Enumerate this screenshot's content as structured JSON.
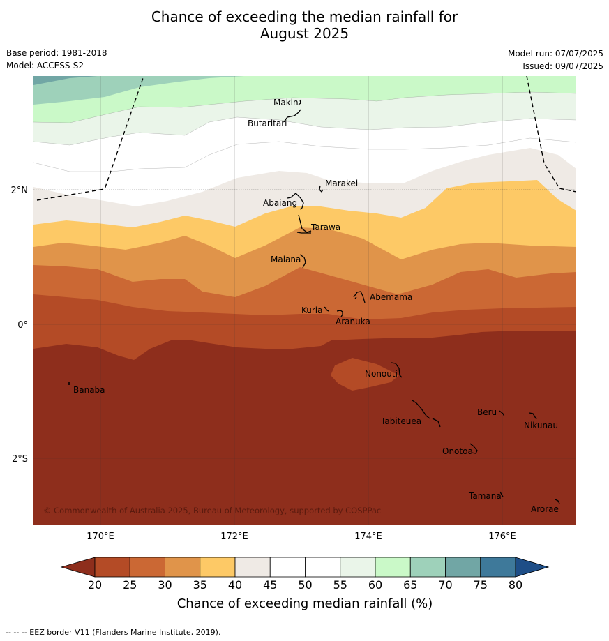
{
  "title_line1": "Chance of exceeding the median rainfall for",
  "title_line2": "August 2025",
  "meta": {
    "base_period": "Base period: 1981-2018",
    "model": "Model: ACCESS-S2",
    "model_run": "Model run: 07/07/2025",
    "issued": "Issued: 09/07/2025"
  },
  "map": {
    "lat_labels": [
      "2°N",
      "0°",
      "2°S"
    ],
    "lon_labels": [
      "170°E",
      "172°E",
      "174°E",
      "176°E"
    ],
    "copyright": "© Commonwealth of Australia 2025, Bureau of Meteorology, supported by COSPPac",
    "places": [
      {
        "name": "Makin"
      },
      {
        "name": "Butaritari"
      },
      {
        "name": "Marakei"
      },
      {
        "name": "Abaiang"
      },
      {
        "name": "Tarawa"
      },
      {
        "name": "Maiana"
      },
      {
        "name": "Abemama"
      },
      {
        "name": "Kuria"
      },
      {
        "name": "Aranuka"
      },
      {
        "name": "Nonouti"
      },
      {
        "name": "Banaba"
      },
      {
        "name": "Beru"
      },
      {
        "name": "Nikunau"
      },
      {
        "name": "Tabiteuea"
      },
      {
        "name": "Onotoa"
      },
      {
        "name": "Tamana"
      },
      {
        "name": "Arorae"
      }
    ]
  },
  "colorbar": {
    "label": "Chance of exceeding median rainfall (%)",
    "ticks": [
      "20",
      "25",
      "30",
      "35",
      "40",
      "45",
      "50",
      "55",
      "60",
      "65",
      "70",
      "75",
      "80"
    ],
    "colors": [
      "#8e2e1c",
      "#b44b26",
      "#cb6834",
      "#e0944a",
      "#fdc966",
      "#efeae5",
      "#ffffff",
      "#ffffff",
      "#eaf5e9",
      "#caf9c8",
      "#9ed1ba",
      "#71a6a5",
      "#3e799a",
      "#1e4e87"
    ]
  },
  "footnote": "--  --  -- EEZ border V11 (Flanders Marine Institute, 2019)."
}
